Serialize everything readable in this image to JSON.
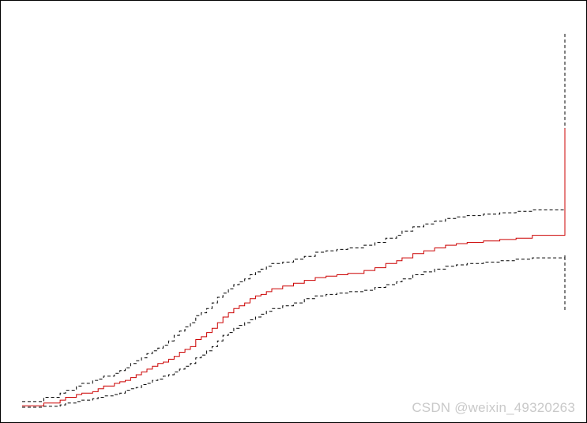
{
  "watermark": "CSDN @weixin_49320263",
  "chart_data": {
    "type": "line",
    "step": true,
    "grid": false,
    "legend": "none",
    "title": "",
    "xlabel": "",
    "ylabel": "",
    "xlim": [
      0,
      100
    ],
    "ylim": [
      0,
      1
    ],
    "colors": {
      "estimate": "#cc0000",
      "bounds": "#000000",
      "frame": "#000000"
    },
    "series": [
      {
        "role": "estimate",
        "style": "solid",
        "x": [
          0,
          4,
          7,
          8,
          10,
          11,
          13,
          14,
          15,
          17,
          18,
          19,
          20,
          21,
          22,
          23,
          24,
          25,
          26,
          27,
          28,
          29,
          30,
          31,
          32,
          33,
          34,
          35,
          36,
          37,
          38,
          39,
          40,
          41,
          42,
          43,
          44,
          45,
          46,
          48,
          50,
          52,
          54,
          56,
          58,
          60,
          63,
          65,
          67,
          69,
          70,
          72,
          74,
          76,
          78,
          80,
          82,
          85,
          88,
          91,
          94,
          100,
          100
        ],
        "y": [
          0.005,
          0.015,
          0.025,
          0.035,
          0.045,
          0.05,
          0.055,
          0.065,
          0.075,
          0.085,
          0.09,
          0.095,
          0.105,
          0.115,
          0.125,
          0.135,
          0.145,
          0.155,
          0.16,
          0.17,
          0.18,
          0.195,
          0.205,
          0.215,
          0.24,
          0.25,
          0.265,
          0.28,
          0.3,
          0.32,
          0.335,
          0.35,
          0.36,
          0.37,
          0.385,
          0.395,
          0.4,
          0.41,
          0.42,
          0.43,
          0.44,
          0.45,
          0.46,
          0.465,
          0.47,
          0.475,
          0.485,
          0.495,
          0.51,
          0.52,
          0.53,
          0.545,
          0.555,
          0.565,
          0.575,
          0.58,
          0.585,
          0.59,
          0.595,
          0.6,
          0.61,
          0.62,
          0.99
        ]
      },
      {
        "role": "upper-bound",
        "style": "dashed",
        "x": [
          0,
          4,
          7,
          8,
          10,
          11,
          13,
          14,
          15,
          17,
          18,
          19,
          20,
          21,
          22,
          23,
          24,
          25,
          26,
          27,
          28,
          29,
          30,
          31,
          32,
          33,
          34,
          35,
          36,
          37,
          38,
          39,
          40,
          41,
          42,
          43,
          44,
          45,
          46,
          48,
          50,
          52,
          54,
          56,
          58,
          60,
          63,
          65,
          67,
          69,
          70,
          72,
          74,
          76,
          78,
          80,
          82,
          85,
          88,
          91,
          94,
          100,
          100
        ],
        "y": [
          0.02,
          0.035,
          0.05,
          0.06,
          0.075,
          0.085,
          0.095,
          0.1,
          0.11,
          0.12,
          0.13,
          0.14,
          0.155,
          0.165,
          0.175,
          0.19,
          0.2,
          0.21,
          0.22,
          0.235,
          0.255,
          0.27,
          0.285,
          0.3,
          0.325,
          0.335,
          0.35,
          0.37,
          0.39,
          0.405,
          0.42,
          0.435,
          0.445,
          0.455,
          0.47,
          0.48,
          0.49,
          0.5,
          0.51,
          0.515,
          0.525,
          0.535,
          0.55,
          0.555,
          0.56,
          0.565,
          0.575,
          0.585,
          0.6,
          0.61,
          0.625,
          0.64,
          0.65,
          0.66,
          0.67,
          0.675,
          0.68,
          0.685,
          0.69,
          0.695,
          0.7,
          0.71,
          1.33
        ]
      },
      {
        "role": "lower-bound",
        "style": "dashed",
        "x": [
          0,
          4,
          7,
          8,
          10,
          11,
          13,
          14,
          15,
          17,
          18,
          19,
          20,
          21,
          22,
          23,
          24,
          25,
          26,
          27,
          28,
          29,
          30,
          31,
          32,
          33,
          34,
          35,
          36,
          37,
          38,
          39,
          40,
          41,
          42,
          43,
          44,
          45,
          46,
          48,
          50,
          52,
          54,
          56,
          58,
          60,
          63,
          65,
          67,
          69,
          70,
          72,
          74,
          76,
          78,
          80,
          82,
          85,
          88,
          91,
          94,
          100,
          100
        ],
        "y": [
          0.0,
          0.003,
          0.008,
          0.015,
          0.02,
          0.025,
          0.03,
          0.035,
          0.04,
          0.045,
          0.05,
          0.06,
          0.065,
          0.07,
          0.08,
          0.085,
          0.095,
          0.1,
          0.11,
          0.115,
          0.125,
          0.135,
          0.145,
          0.155,
          0.175,
          0.185,
          0.2,
          0.215,
          0.235,
          0.255,
          0.265,
          0.28,
          0.29,
          0.3,
          0.31,
          0.32,
          0.33,
          0.34,
          0.35,
          0.36,
          0.37,
          0.385,
          0.395,
          0.4,
          0.405,
          0.41,
          0.415,
          0.425,
          0.435,
          0.445,
          0.455,
          0.47,
          0.48,
          0.49,
          0.5,
          0.505,
          0.51,
          0.515,
          0.52,
          0.525,
          0.53,
          0.54,
          0.34
        ]
      }
    ]
  }
}
